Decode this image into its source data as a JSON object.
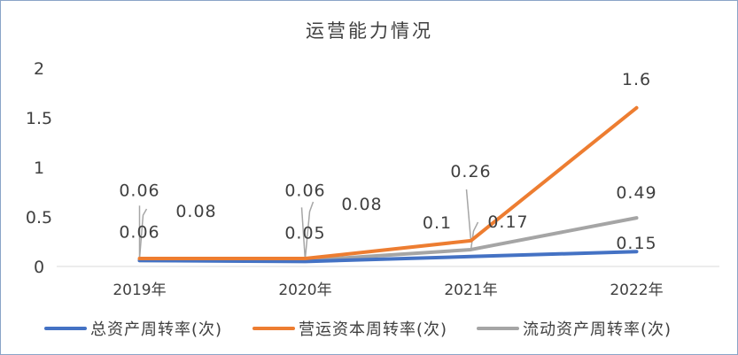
{
  "chart_data": {
    "type": "line",
    "title": "运营能力情况",
    "categories": [
      "2019年",
      "2020年",
      "2021年",
      "2022年"
    ],
    "ylim": [
      0,
      2
    ],
    "yticks": [
      "0",
      "0.5",
      "1",
      "1.5",
      "2"
    ],
    "grid": false,
    "legend_position": "bottom",
    "series": [
      {
        "name": "总资产周转率(次)",
        "color": "#4472C4",
        "values": [
          0.06,
          0.05,
          0.1,
          0.15
        ],
        "labels": [
          "0.06",
          "0.05",
          "0.1",
          "0.15"
        ]
      },
      {
        "name": "营运资本周转率(次)",
        "color": "#ED7D31",
        "values": [
          0.08,
          0.08,
          0.26,
          1.6
        ],
        "labels": [
          "0.08",
          "0.08",
          "0.26",
          "1.6"
        ]
      },
      {
        "name": "流动资产周转率(次)",
        "color": "#A5A5A5",
        "values": [
          0.06,
          0.06,
          0.17,
          0.49
        ],
        "labels": [
          "0.06",
          "0.06",
          "0.17",
          "0.49"
        ]
      }
    ]
  }
}
